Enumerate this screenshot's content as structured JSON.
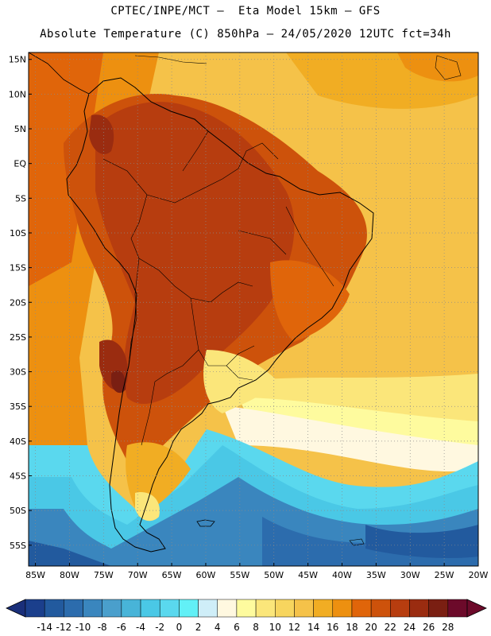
{
  "header": {
    "line1": "CPTEC/INPE/MCT –  Eta Model 15km – GFS",
    "line2": "Absolute Temperature (C) 850hPa – 24/05/2020 12UTC fct=34h"
  },
  "map": {
    "projection": "equirectangular",
    "lon_range": [
      -86,
      -20
    ],
    "lat_range": [
      -58,
      16
    ],
    "grid": "dotted",
    "lat_ticks": [
      "15N",
      "10N",
      "5N",
      "EQ",
      "5S",
      "10S",
      "15S",
      "20S",
      "25S",
      "30S",
      "35S",
      "40S",
      "45S",
      "50S",
      "55S"
    ],
    "lat_values": [
      15,
      10,
      5,
      0,
      -5,
      -10,
      -15,
      -20,
      -25,
      -30,
      -35,
      -40,
      -45,
      -50,
      -55
    ],
    "lon_ticks": [
      "85W",
      "80W",
      "75W",
      "70W",
      "65W",
      "60W",
      "55W",
      "50W",
      "45W",
      "40W",
      "35W",
      "30W",
      "25W",
      "20W"
    ],
    "lon_values": [
      -85,
      -80,
      -75,
      -70,
      -65,
      -60,
      -55,
      -50,
      -45,
      -40,
      -35,
      -30,
      -25,
      -20
    ]
  },
  "colorbar": {
    "labels": [
      "-14",
      "-12",
      "-10",
      "-8",
      "-6",
      "-4",
      "-2",
      "0",
      "2",
      "4",
      "6",
      "8",
      "10",
      "12",
      "14",
      "16",
      "18",
      "20",
      "22",
      "24",
      "26",
      "28"
    ],
    "colors": [
      "#1b3f8c",
      "#225a9e",
      "#2c6cad",
      "#3a86be",
      "#4a9fcc",
      "#48b4d8",
      "#4ac8e6",
      "#5ad8ee",
      "#62f0f6",
      "#cfeef8",
      "#fff8e0",
      "#fefb9e",
      "#fbe67a",
      "#f7d55e",
      "#f5c249",
      "#f1ad23",
      "#ed9010",
      "#e0650a",
      "#cd520b",
      "#b73d0f",
      "#9a2c10",
      "#7a1f12",
      "#6c0a2a"
    ],
    "under_color": "#1a2f7a",
    "over_color": "#6c0a2a"
  }
}
